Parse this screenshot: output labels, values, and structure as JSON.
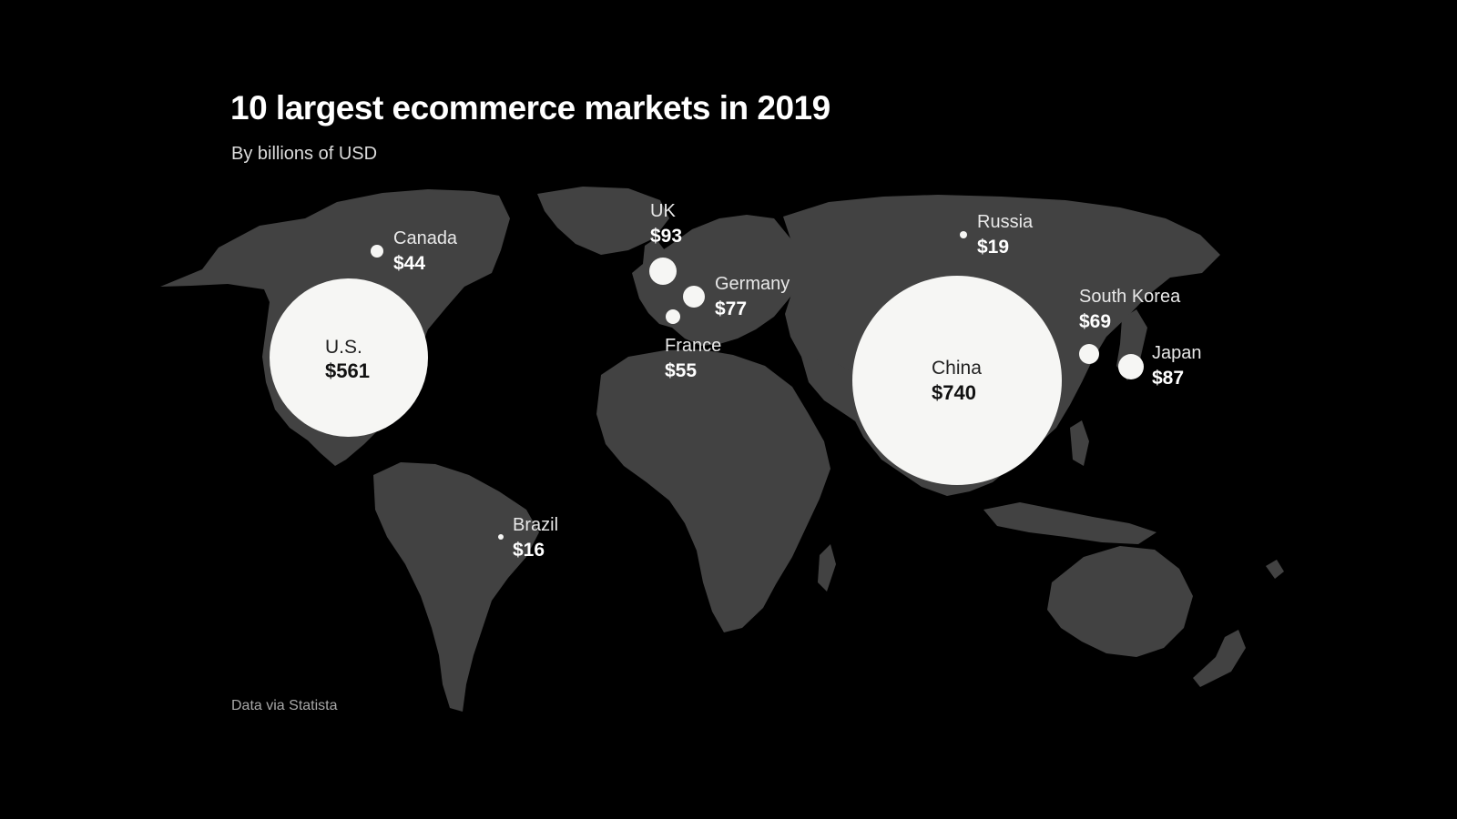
{
  "header": {
    "title": "10 largest ecommerce markets in 2019",
    "subtitle": "By billions of USD"
  },
  "footer": {
    "source": "Data via Statista"
  },
  "colors": {
    "background": "#000000",
    "land": "#424242",
    "bubble": "#f6f6f4"
  },
  "markets": [
    {
      "id": "us",
      "name": "U.S.",
      "value_label": "$561",
      "value": 561
    },
    {
      "id": "china",
      "name": "China",
      "value_label": "$740",
      "value": 740
    },
    {
      "id": "canada",
      "name": "Canada",
      "value_label": "$44",
      "value": 44
    },
    {
      "id": "uk",
      "name": "UK",
      "value_label": "$93",
      "value": 93
    },
    {
      "id": "germany",
      "name": "Germany",
      "value_label": "$77",
      "value": 77
    },
    {
      "id": "france",
      "name": "France",
      "value_label": "$55",
      "value": 55
    },
    {
      "id": "russia",
      "name": "Russia",
      "value_label": "$19",
      "value": 19
    },
    {
      "id": "south-korea",
      "name": "South Korea",
      "value_label": "$69",
      "value": 69
    },
    {
      "id": "japan",
      "name": "Japan",
      "value_label": "$87",
      "value": 87
    },
    {
      "id": "brazil",
      "name": "Brazil",
      "value_label": "$16",
      "value": 16
    }
  ]
}
